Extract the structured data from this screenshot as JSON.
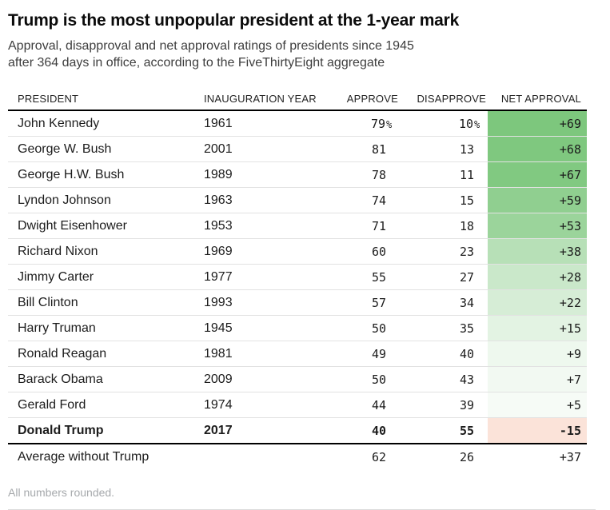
{
  "chart_data": {
    "type": "table",
    "title": "Trump is the most unpopular president at the 1-year mark",
    "subtitle": "Approval, disapproval and net approval ratings of presidents since 1945\nafter 364 days in office, according to the FiveThirtyEight aggregate",
    "footnote": "All numbers rounded.",
    "columns": [
      {
        "key": "president",
        "label": "PRESIDENT",
        "align": "left"
      },
      {
        "key": "year",
        "label": "INAUGURATION YEAR",
        "align": "left"
      },
      {
        "key": "approve",
        "label": "APPROVE",
        "align": "right"
      },
      {
        "key": "disapprove",
        "label": "DISAPPROVE",
        "align": "right"
      },
      {
        "key": "net",
        "label": "NET APPROVAL",
        "align": "right"
      }
    ],
    "net_scale": {
      "max": 69,
      "positive_rgb": [
        125,
        199,
        125
      ],
      "negative_rgb": [
        235,
        125,
        80
      ]
    },
    "rows": [
      {
        "president": "John Kennedy",
        "year": "1961",
        "approve": "79",
        "approve_suffix": "%",
        "disapprove": "10",
        "disapprove_suffix": "%",
        "net": "+69",
        "net_value": 69
      },
      {
        "president": "George W. Bush",
        "year": "2001",
        "approve": "81",
        "disapprove": "13",
        "net": "+68",
        "net_value": 68
      },
      {
        "president": "George H.W. Bush",
        "year": "1989",
        "approve": "78",
        "disapprove": "11",
        "net": "+67",
        "net_value": 67
      },
      {
        "president": "Lyndon Johnson",
        "year": "1963",
        "approve": "74",
        "disapprove": "15",
        "net": "+59",
        "net_value": 59
      },
      {
        "president": "Dwight Eisenhower",
        "year": "1953",
        "approve": "71",
        "disapprove": "18",
        "net": "+53",
        "net_value": 53
      },
      {
        "president": "Richard Nixon",
        "year": "1969",
        "approve": "60",
        "disapprove": "23",
        "net": "+38",
        "net_value": 38
      },
      {
        "president": "Jimmy Carter",
        "year": "1977",
        "approve": "55",
        "disapprove": "27",
        "net": "+28",
        "net_value": 28
      },
      {
        "president": "Bill Clinton",
        "year": "1993",
        "approve": "57",
        "disapprove": "34",
        "net": "+22",
        "net_value": 22
      },
      {
        "president": "Harry Truman",
        "year": "1945",
        "approve": "50",
        "disapprove": "35",
        "net": "+15",
        "net_value": 15
      },
      {
        "president": "Ronald Reagan",
        "year": "1981",
        "approve": "49",
        "disapprove": "40",
        "net": "+9",
        "net_value": 9
      },
      {
        "president": "Barack Obama",
        "year": "2009",
        "approve": "50",
        "disapprove": "43",
        "net": "+7",
        "net_value": 7
      },
      {
        "president": "Gerald Ford",
        "year": "1974",
        "approve": "44",
        "disapprove": "39",
        "net": "+5",
        "net_value": 5
      },
      {
        "president": "Donald Trump",
        "year": "2017",
        "approve": "40",
        "disapprove": "55",
        "net": "-15",
        "net_value": -15,
        "emphasis": true
      },
      {
        "president": "Average without Trump",
        "year": "",
        "approve": "62",
        "disapprove": "26",
        "net": "+37",
        "summary": true
      }
    ]
  }
}
